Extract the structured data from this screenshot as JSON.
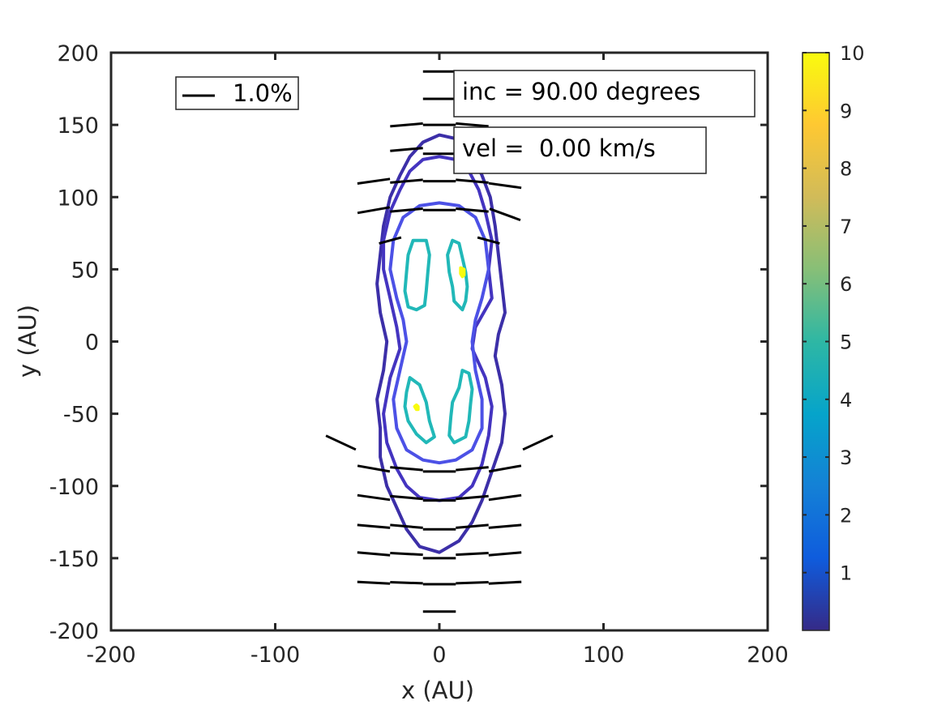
{
  "chart_data": {
    "type": "contour",
    "xlabel": "x (AU)",
    "ylabel": "y (AU)",
    "xlim": [
      -200,
      200
    ],
    "ylim": [
      -200,
      200
    ],
    "xticks": [
      -200,
      -100,
      0,
      100,
      200
    ],
    "yticks": [
      -200,
      -150,
      -100,
      -50,
      0,
      50,
      100,
      150,
      200
    ],
    "xtick_labels": [
      "-200",
      "-100",
      "0",
      "100",
      "200"
    ],
    "ytick_labels": [
      "-200",
      "-150",
      "-100",
      "-50",
      "0",
      "50",
      "100",
      "150",
      "200"
    ],
    "grid": false,
    "colorbar": {
      "range": [
        0,
        10
      ],
      "ticks": [
        1,
        2,
        3,
        4,
        5,
        6,
        7,
        8,
        9,
        10
      ],
      "tick_labels": [
        "1",
        "2",
        "3",
        "4",
        "5",
        "6",
        "7",
        "8",
        "9",
        "10"
      ],
      "colormap": [
        "#352a87",
        "#0f5cdd",
        "#1481d6",
        "#06a4ca",
        "#2eb7a4",
        "#87bf77",
        "#d1bb59",
        "#fec832",
        "#f9fb0e"
      ]
    },
    "annotations": {
      "inc": "inc = 90.00 degrees",
      "vel": "vel =  0.00 km/s"
    },
    "legend": {
      "label": "1.0%",
      "reference_length": 20,
      "position": "top-left"
    },
    "contours": [
      {
        "level": 0.5,
        "color": "#3c2fa8",
        "points": [
          [
            0,
            143
          ],
          [
            12,
            140
          ],
          [
            20,
            130
          ],
          [
            26,
            115
          ],
          [
            31,
            100
          ],
          [
            34,
            80
          ],
          [
            36,
            60
          ],
          [
            38,
            40
          ],
          [
            40,
            20
          ],
          [
            36,
            5
          ],
          [
            34,
            -10
          ],
          [
            38,
            -30
          ],
          [
            40,
            -50
          ],
          [
            38,
            -70
          ],
          [
            32,
            -90
          ],
          [
            26,
            -110
          ],
          [
            20,
            -125
          ],
          [
            12,
            -138
          ],
          [
            0,
            -146
          ],
          [
            -12,
            -142
          ],
          [
            -20,
            -130
          ],
          [
            -26,
            -115
          ],
          [
            -32,
            -100
          ],
          [
            -36,
            -80
          ],
          [
            -36,
            -60
          ],
          [
            -38,
            -40
          ],
          [
            -34,
            -20
          ],
          [
            -32,
            0
          ],
          [
            -36,
            20
          ],
          [
            -38,
            40
          ],
          [
            -36,
            60
          ],
          [
            -34,
            80
          ],
          [
            -30,
            100
          ],
          [
            -24,
            115
          ],
          [
            -18,
            128
          ],
          [
            -10,
            138
          ],
          [
            0,
            143
          ]
        ]
      },
      {
        "level": 0.8,
        "color": "#4434c0",
        "points": [
          [
            0,
            128
          ],
          [
            10,
            126
          ],
          [
            18,
            118
          ],
          [
            24,
            105
          ],
          [
            28,
            90
          ],
          [
            32,
            70
          ],
          [
            30,
            50
          ],
          [
            32,
            30
          ],
          [
            22,
            10
          ],
          [
            20,
            -5
          ],
          [
            28,
            -25
          ],
          [
            32,
            -45
          ],
          [
            30,
            -65
          ],
          [
            26,
            -85
          ],
          [
            20,
            -100
          ],
          [
            12,
            -108
          ],
          [
            0,
            -110
          ],
          [
            -12,
            -108
          ],
          [
            -20,
            -100
          ],
          [
            -26,
            -88
          ],
          [
            -32,
            -70
          ],
          [
            -34,
            -50
          ],
          [
            -30,
            -25
          ],
          [
            -24,
            -5
          ],
          [
            -26,
            10
          ],
          [
            -30,
            30
          ],
          [
            -34,
            50
          ],
          [
            -34,
            70
          ],
          [
            -30,
            90
          ],
          [
            -24,
            105
          ],
          [
            -18,
            118
          ],
          [
            -10,
            126
          ],
          [
            0,
            128
          ]
        ]
      },
      {
        "level": 1.2,
        "color": "#4c51e6",
        "points": [
          [
            0,
            96
          ],
          [
            12,
            94
          ],
          [
            22,
            86
          ],
          [
            28,
            70
          ],
          [
            30,
            50
          ],
          [
            26,
            30
          ],
          [
            22,
            15
          ],
          [
            20,
            0
          ],
          [
            22,
            -20
          ],
          [
            26,
            -40
          ],
          [
            26,
            -60
          ],
          [
            20,
            -75
          ],
          [
            10,
            -82
          ],
          [
            0,
            -84
          ],
          [
            -10,
            -82
          ],
          [
            -20,
            -75
          ],
          [
            -26,
            -60
          ],
          [
            -28,
            -40
          ],
          [
            -24,
            -20
          ],
          [
            -20,
            0
          ],
          [
            -22,
            15
          ],
          [
            -26,
            30
          ],
          [
            -30,
            50
          ],
          [
            -28,
            70
          ],
          [
            -22,
            86
          ],
          [
            -12,
            94
          ],
          [
            0,
            96
          ]
        ]
      },
      {
        "level": 5,
        "color": "#21b8b8",
        "closed": true,
        "points": [
          [
            -8,
            70
          ],
          [
            -6,
            60
          ],
          [
            -7,
            48
          ],
          [
            -8,
            35
          ],
          [
            -9,
            25
          ],
          [
            -14,
            22
          ],
          [
            -19,
            24
          ],
          [
            -21,
            35
          ],
          [
            -20,
            48
          ],
          [
            -19,
            60
          ],
          [
            -16,
            70
          ],
          [
            -8,
            70
          ]
        ]
      },
      {
        "level": 5,
        "color": "#21b8b8",
        "closed": true,
        "points": [
          [
            8,
            70
          ],
          [
            12,
            68
          ],
          [
            14,
            58
          ],
          [
            16,
            48
          ],
          [
            17,
            38
          ],
          [
            16,
            28
          ],
          [
            14,
            22
          ],
          [
            9,
            28
          ],
          [
            8,
            38
          ],
          [
            6,
            48
          ],
          [
            5,
            60
          ],
          [
            8,
            70
          ]
        ]
      },
      {
        "level": 5,
        "color": "#21b8b8",
        "closed": true,
        "points": [
          [
            -18,
            -25
          ],
          [
            -20,
            -35
          ],
          [
            -21,
            -45
          ],
          [
            -19,
            -55
          ],
          [
            -14,
            -64
          ],
          [
            -8,
            -70
          ],
          [
            -3,
            -66
          ],
          [
            -6,
            -55
          ],
          [
            -8,
            -42
          ],
          [
            -12,
            -30
          ],
          [
            -18,
            -25
          ]
        ]
      },
      {
        "level": 5,
        "color": "#21b8b8",
        "closed": true,
        "points": [
          [
            14,
            -20
          ],
          [
            18,
            -22
          ],
          [
            20,
            -33
          ],
          [
            19,
            -43
          ],
          [
            18,
            -55
          ],
          [
            16,
            -66
          ],
          [
            9,
            -70
          ],
          [
            6,
            -65
          ],
          [
            7,
            -52
          ],
          [
            8,
            -42
          ],
          [
            12,
            -32
          ],
          [
            14,
            -20
          ]
        ]
      },
      {
        "level": 10,
        "color": "#f9fb0e",
        "closed": true,
        "points": [
          [
            13,
            51
          ],
          [
            15,
            50
          ],
          [
            15,
            46
          ],
          [
            14,
            45
          ],
          [
            13,
            47
          ],
          [
            13,
            51
          ]
        ]
      },
      {
        "level": 10,
        "color": "#f9fb0e",
        "closed": true,
        "points": [
          [
            -14,
            -44
          ],
          [
            -13,
            -45
          ],
          [
            -13,
            -47
          ],
          [
            -14,
            -47
          ],
          [
            -15,
            -45
          ],
          [
            -14,
            -44
          ]
        ]
      }
    ],
    "vectors": [
      {
        "x": 0,
        "y": 187,
        "length": 20,
        "angle": 0
      },
      {
        "x": 0,
        "y": 168,
        "length": 20,
        "angle": 0
      },
      {
        "x": -20,
        "y": 150,
        "length": 20,
        "angle": 5
      },
      {
        "x": 0,
        "y": 150,
        "length": 20,
        "angle": 0
      },
      {
        "x": 20,
        "y": 150,
        "length": 20,
        "angle": -5
      },
      {
        "x": -20,
        "y": 133,
        "length": 20,
        "angle": 5
      },
      {
        "x": 0,
        "y": 130,
        "length": 20,
        "angle": 0
      },
      {
        "x": 20,
        "y": 130,
        "length": 20,
        "angle": -5
      },
      {
        "x": -40,
        "y": 111,
        "length": 20,
        "angle": 8
      },
      {
        "x": -20,
        "y": 111,
        "length": 20,
        "angle": 5
      },
      {
        "x": 0,
        "y": 111,
        "length": 20,
        "angle": 0
      },
      {
        "x": 20,
        "y": 111,
        "length": 20,
        "angle": -5
      },
      {
        "x": 40,
        "y": 108,
        "length": 20,
        "angle": -8
      },
      {
        "x": -40,
        "y": 91,
        "length": 20,
        "angle": 10
      },
      {
        "x": -20,
        "y": 91,
        "length": 20,
        "angle": 5
      },
      {
        "x": 0,
        "y": 91,
        "length": 20,
        "angle": 0
      },
      {
        "x": 20,
        "y": 91,
        "length": 20,
        "angle": -5
      },
      {
        "x": 40,
        "y": 88,
        "length": 20,
        "angle": -20
      },
      {
        "x": -30,
        "y": 70,
        "length": 14,
        "angle": 15
      },
      {
        "x": 30,
        "y": 70,
        "length": 14,
        "angle": -15
      },
      {
        "x": -60,
        "y": -70,
        "length": 20,
        "angle": -25
      },
      {
        "x": 60,
        "y": -70,
        "length": 20,
        "angle": 25
      },
      {
        "x": -40,
        "y": -88,
        "length": 20,
        "angle": -10
      },
      {
        "x": -20,
        "y": -88,
        "length": 20,
        "angle": -5
      },
      {
        "x": 0,
        "y": -90,
        "length": 20,
        "angle": 0
      },
      {
        "x": 20,
        "y": -88,
        "length": 20,
        "angle": 5
      },
      {
        "x": 40,
        "y": -88,
        "length": 20,
        "angle": 10
      },
      {
        "x": -40,
        "y": -108,
        "length": 20,
        "angle": -8
      },
      {
        "x": -20,
        "y": -108,
        "length": 20,
        "angle": -5
      },
      {
        "x": 0,
        "y": -110,
        "length": 20,
        "angle": 0
      },
      {
        "x": 20,
        "y": -108,
        "length": 20,
        "angle": 5
      },
      {
        "x": 40,
        "y": -108,
        "length": 20,
        "angle": 8
      },
      {
        "x": -40,
        "y": -128,
        "length": 20,
        "angle": -5
      },
      {
        "x": -20,
        "y": -128,
        "length": 20,
        "angle": -5
      },
      {
        "x": 0,
        "y": -130,
        "length": 20,
        "angle": 0
      },
      {
        "x": 20,
        "y": -128,
        "length": 20,
        "angle": 5
      },
      {
        "x": 40,
        "y": -128,
        "length": 20,
        "angle": 5
      },
      {
        "x": -40,
        "y": -147,
        "length": 20,
        "angle": -5
      },
      {
        "x": -20,
        "y": -147,
        "length": 20,
        "angle": -3
      },
      {
        "x": 0,
        "y": -150,
        "length": 20,
        "angle": 0
      },
      {
        "x": 20,
        "y": -147,
        "length": 20,
        "angle": 3
      },
      {
        "x": 40,
        "y": -147,
        "length": 20,
        "angle": 5
      },
      {
        "x": -40,
        "y": -167,
        "length": 20,
        "angle": -3
      },
      {
        "x": -20,
        "y": -167,
        "length": 20,
        "angle": -2
      },
      {
        "x": 0,
        "y": -168,
        "length": 20,
        "angle": 0
      },
      {
        "x": 20,
        "y": -167,
        "length": 20,
        "angle": 2
      },
      {
        "x": 40,
        "y": -167,
        "length": 20,
        "angle": 3
      },
      {
        "x": 0,
        "y": -187,
        "length": 20,
        "angle": 0
      }
    ]
  }
}
